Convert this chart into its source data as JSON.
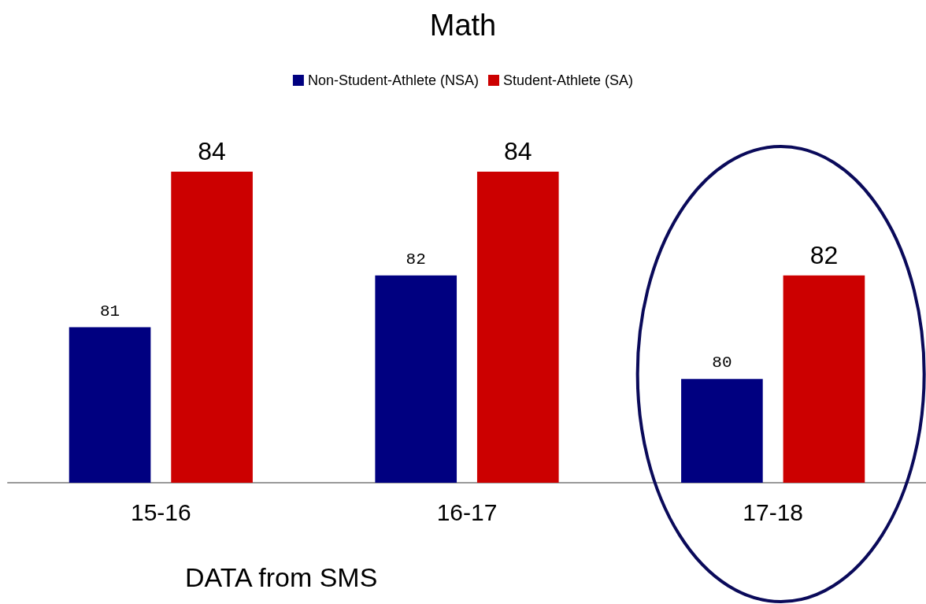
{
  "chart_data": {
    "type": "bar",
    "title": "Math",
    "categories": [
      "15-16",
      "16-17",
      "17-18"
    ],
    "series": [
      {
        "name": "Non-Student-Athlete (NSA)",
        "color": "#000080",
        "values": [
          81,
          82,
          80
        ]
      },
      {
        "name": "Student-Athlete (SA)",
        "color": "#cc0000",
        "values": [
          84,
          84,
          82
        ]
      }
    ],
    "ylim": [
      78,
      84
    ],
    "data_labels": true,
    "legend": "top",
    "annotations": [
      "DATA from SMS"
    ]
  }
}
